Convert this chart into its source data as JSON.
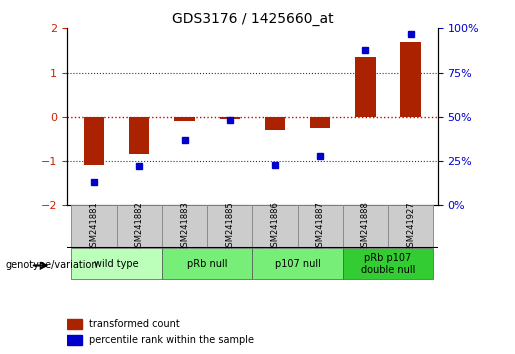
{
  "title": "GDS3176 / 1425660_at",
  "samples": [
    "GSM241881",
    "GSM241882",
    "GSM241883",
    "GSM241885",
    "GSM241886",
    "GSM241887",
    "GSM241888",
    "GSM241927"
  ],
  "transformed_count": [
    -1.1,
    -0.85,
    -0.1,
    -0.05,
    -0.3,
    -0.25,
    1.35,
    1.7
  ],
  "percentile_rank": [
    13,
    22,
    37,
    48,
    23,
    28,
    88,
    97
  ],
  "groups": [
    {
      "label": "wild type",
      "samples": [
        0,
        1
      ],
      "color": "#aaffaa"
    },
    {
      "label": "pRb null",
      "samples": [
        2,
        3
      ],
      "color": "#55dd55"
    },
    {
      "label": "p107 null",
      "samples": [
        4,
        5
      ],
      "color": "#55dd55"
    },
    {
      "label": "pRb p107\ndouble null",
      "samples": [
        6,
        7
      ],
      "color": "#00bb00"
    }
  ],
  "ylim_left": [
    -2,
    2
  ],
  "ylim_right": [
    0,
    100
  ],
  "yticks_left": [
    -2,
    -1,
    0,
    1,
    2
  ],
  "yticks_right": [
    0,
    25,
    50,
    75,
    100
  ],
  "ytick_labels_right": [
    "0%",
    "25%",
    "50%",
    "75%",
    "100%"
  ],
  "bar_color": "#aa2200",
  "dot_color": "#0000cc",
  "hline_y0_color": "#cc0000",
  "hline_dotted_color": "#333333",
  "background_color": "#ffffff",
  "genotype_label": "genotype/variation"
}
